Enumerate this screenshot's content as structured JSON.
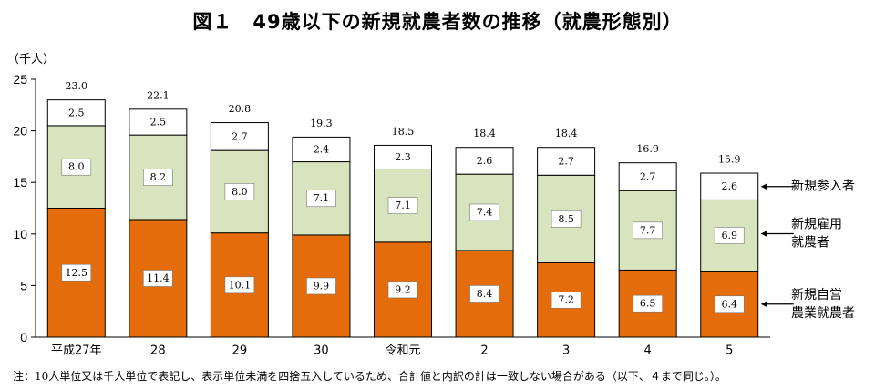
{
  "title": "図１　49歳以下の新規就農者数の推移（就農形態別）",
  "unit_label": "（千人）",
  "note": "注：10人単位又は千人単位で表記し、表示単位未満を四捨五入しているため、合計値と内訳の計は一致しない場合がある（以下、４まで同じ。）。",
  "chart_data": {
    "type": "bar",
    "stacked": true,
    "title": "図１　49歳以下の新規就農者数の推移（就農形態別）",
    "ylabel": "（千人）",
    "ylim": [
      0,
      25
    ],
    "yticks": [
      0,
      5,
      10,
      15,
      20,
      25
    ],
    "grid": false,
    "legend_position": "right",
    "categories": [
      "平成27年",
      "28",
      "29",
      "30",
      "令和元",
      "2",
      "3",
      "4",
      "5"
    ],
    "series": [
      {
        "name": "新規自営農業就農者",
        "legend_lines": [
          "新規自営",
          "農業就農者"
        ],
        "color": "#E46C0A",
        "values": [
          12.5,
          11.4,
          10.1,
          9.9,
          9.2,
          8.4,
          7.2,
          6.5,
          6.4
        ],
        "labels": [
          "12.5",
          "11.4",
          "10.1",
          "9.9",
          "9.2",
          "8.4",
          "7.2",
          "6.5",
          "6.4"
        ]
      },
      {
        "name": "新規雇用就農者",
        "legend_lines": [
          "新規雇用",
          "就農者"
        ],
        "color": "#D7E4BD",
        "values": [
          8.0,
          8.2,
          8.0,
          7.1,
          7.1,
          7.4,
          8.5,
          7.7,
          6.9
        ],
        "labels": [
          "8.0",
          "8.2",
          "8.0",
          "7.1",
          "7.1",
          "7.4",
          "8.5",
          "7.7",
          "6.9"
        ]
      },
      {
        "name": "新規参入者",
        "legend_lines": [
          "新規参入者"
        ],
        "color": "#FFFFFF",
        "values": [
          2.5,
          2.5,
          2.7,
          2.4,
          2.3,
          2.6,
          2.7,
          2.7,
          2.6
        ],
        "labels": [
          "2.5",
          "2.5",
          "2.7",
          "2.4",
          "2.3",
          "2.6",
          "2.7",
          "2.7",
          "2.6"
        ]
      }
    ],
    "totals": [
      23.0,
      22.1,
      20.8,
      19.3,
      18.5,
      18.4,
      18.4,
      16.9,
      15.9
    ],
    "total_labels": [
      "23.0",
      "22.1",
      "20.8",
      "19.3",
      "18.5",
      "18.4",
      "18.4",
      "16.9",
      "15.9"
    ]
  }
}
